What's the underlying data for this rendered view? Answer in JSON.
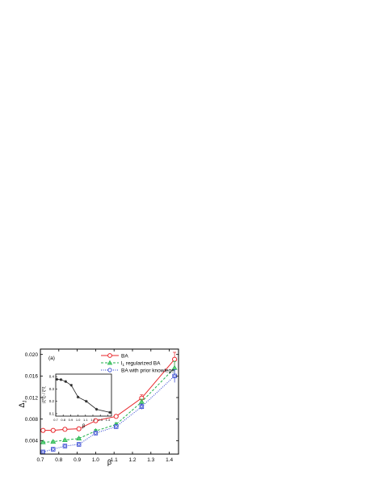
{
  "chart_data": [
    {
      "type": "line",
      "panel_label": "(a)",
      "xlabel": "β",
      "ylabel": "Δ",
      "ylabel_sub": "J",
      "xlim": [
        0.7,
        1.45
      ],
      "ylim": [
        0.0015,
        0.021
      ],
      "xticks": [
        0.7,
        0.8,
        0.9,
        1.0,
        1.1,
        1.2,
        1.3,
        1.4
      ],
      "xtick_labels": [
        "0.7",
        "0.8",
        "0.9",
        "1.0",
        "1.1",
        "1.2",
        "1.3",
        "1.4"
      ],
      "yticks": [
        0.004,
        0.008,
        0.012,
        0.016,
        0.02
      ],
      "ytick_labels": [
        "0.004",
        "0.008",
        "0.012",
        "0.016",
        "0.020"
      ],
      "legend_position": "top-right",
      "x": [
        0.7143,
        0.7692,
        0.8333,
        0.9091,
        1.0,
        1.1111,
        1.25,
        1.4286
      ],
      "series": [
        {
          "name": "BA",
          "label_sub": "",
          "label_rest": "",
          "color": "#e8252a",
          "marker": "circle",
          "linestyle": "solid",
          "values": [
            0.0059,
            0.0059,
            0.0061,
            0.0062,
            0.0077,
            0.0085,
            0.0119,
            0.0191
          ],
          "errors": [
            0.0002,
            0.0002,
            0.0002,
            0.0002,
            0.0003,
            0.0003,
            0.0006,
            0.0013
          ]
        },
        {
          "name": "l",
          "label_sub": "1",
          "label_rest": " regularized BA",
          "color": "#22b24c",
          "marker": "triangle",
          "linestyle": "dashed",
          "values": [
            0.0037,
            0.0038,
            0.0041,
            0.0044,
            0.0058,
            0.007,
            0.0112,
            0.0175
          ],
          "errors": [
            0.0002,
            0.0002,
            0.0002,
            0.0002,
            0.0003,
            0.0003,
            0.0005,
            0.0012
          ]
        },
        {
          "name": "BA with prior knowlege",
          "label_sub": "",
          "label_rest": "",
          "color": "#2b3fcf",
          "marker": "square-circle",
          "linestyle": "dotted",
          "values": [
            0.0019,
            0.0024,
            0.003,
            0.0033,
            0.0054,
            0.0066,
            0.0103,
            0.016
          ],
          "errors": [
            0.0002,
            0.0002,
            0.0002,
            0.0002,
            0.0003,
            0.0003,
            0.0005,
            0.0012
          ]
        }
      ]
    },
    {
      "type": "line",
      "inset": true,
      "xlabel": "β",
      "ylabel": "⟨ξ*ξ⟩ / ξ*ξ",
      "xlim": [
        0.7,
        1.45
      ],
      "ylim": [
        0.08,
        0.42
      ],
      "xticks": [
        0.7,
        0.8,
        0.9,
        1.0,
        1.1,
        1.2,
        1.3,
        1.4
      ],
      "xtick_labels": [
        "0.7",
        "0.8",
        "0.9",
        "1.0",
        "1.1",
        "1.2",
        "1.3",
        "1.4"
      ],
      "yticks": [
        0.1,
        0.2,
        0.3,
        0.4
      ],
      "ytick_labels": [
        "0.1",
        "0.2",
        "0.3",
        "0.4"
      ],
      "x": [
        0.7143,
        0.7692,
        0.8333,
        0.9091,
        1.0,
        1.1111,
        1.25,
        1.4286
      ],
      "series": [
        {
          "color": "#222222",
          "marker": "star",
          "values": [
            0.378,
            0.375,
            0.36,
            0.33,
            0.234,
            0.2,
            0.135,
            0.11
          ]
        }
      ]
    }
  ]
}
